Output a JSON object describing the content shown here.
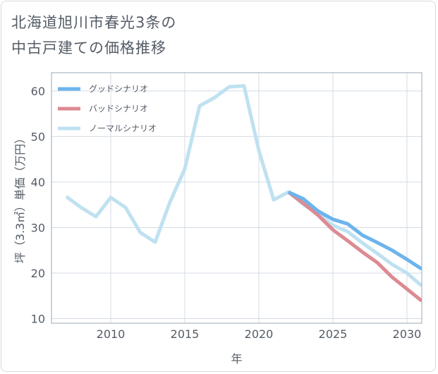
{
  "title": {
    "line1": "北海道旭川市春光3条の",
    "line2": "中古戸建ての価格推移"
  },
  "chart_data": {
    "type": "line",
    "title": "北海道旭川市春光3条の中古戸建ての価格推移",
    "xlabel": "年",
    "ylabel": "坪（3.3㎡）単価（万円）",
    "xlim": [
      2006,
      2031
    ],
    "ylim": [
      9,
      64
    ],
    "x_ticks": [
      2010,
      2015,
      2020,
      2025,
      2030
    ],
    "y_ticks": [
      10,
      20,
      30,
      40,
      50,
      60
    ],
    "grid": true,
    "legend_position": "top-left",
    "series": [
      {
        "name": "グッドシナリオ",
        "color": "#6db4ec",
        "x": [
          2022,
          2023,
          2024,
          2025,
          2026,
          2027,
          2028,
          2029,
          2030,
          2031
        ],
        "values": [
          37.8,
          36.3,
          33.6,
          31.8,
          30.8,
          28.3,
          26.7,
          25.0,
          23.0,
          20.9
        ]
      },
      {
        "name": "バッドシナリオ",
        "color": "#dd8a92",
        "x": [
          2022,
          2023,
          2024,
          2025,
          2026,
          2027,
          2028,
          2029,
          2030,
          2031
        ],
        "values": [
          37.8,
          35.3,
          32.7,
          29.5,
          27.1,
          24.6,
          22.3,
          19.1,
          16.5,
          13.9
        ]
      },
      {
        "name": "ノーマルシナリオ",
        "color": "#bfe1f0",
        "x": [
          2007,
          2008,
          2009,
          2010,
          2011,
          2012,
          2013,
          2014,
          2015,
          2016,
          2017,
          2018,
          2019,
          2020,
          2021,
          2022,
          2023,
          2024,
          2025,
          2026,
          2027,
          2028,
          2029,
          2030,
          2031
        ],
        "values": [
          36.8,
          34.4,
          32.4,
          36.6,
          34.4,
          28.9,
          26.8,
          35.6,
          42.9,
          56.7,
          58.5,
          60.9,
          61.1,
          46.9,
          36.1,
          37.8,
          35.1,
          33.0,
          30.5,
          29.1,
          26.6,
          24.3,
          21.9,
          20.0,
          17.2
        ]
      }
    ]
  }
}
